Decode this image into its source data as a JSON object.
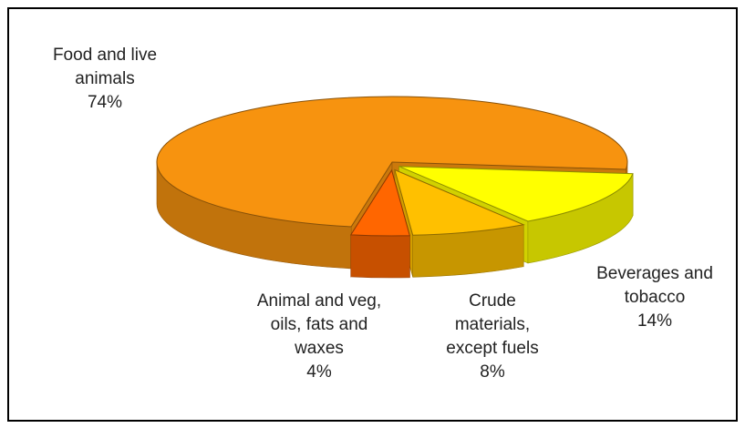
{
  "chart_data": {
    "type": "pie",
    "categories": [
      "Food and live animals",
      "Beverages and tobacco",
      "Crude materials, except fuels",
      "Animal and veg, oils, fats and waxes"
    ],
    "values": [
      74,
      14,
      8,
      4
    ],
    "value_labels": [
      "74%",
      "14%",
      "8%",
      "4%"
    ],
    "colors": [
      "#f7930f",
      "#ffff00",
      "#ffc000",
      "#ff6600"
    ]
  }
}
